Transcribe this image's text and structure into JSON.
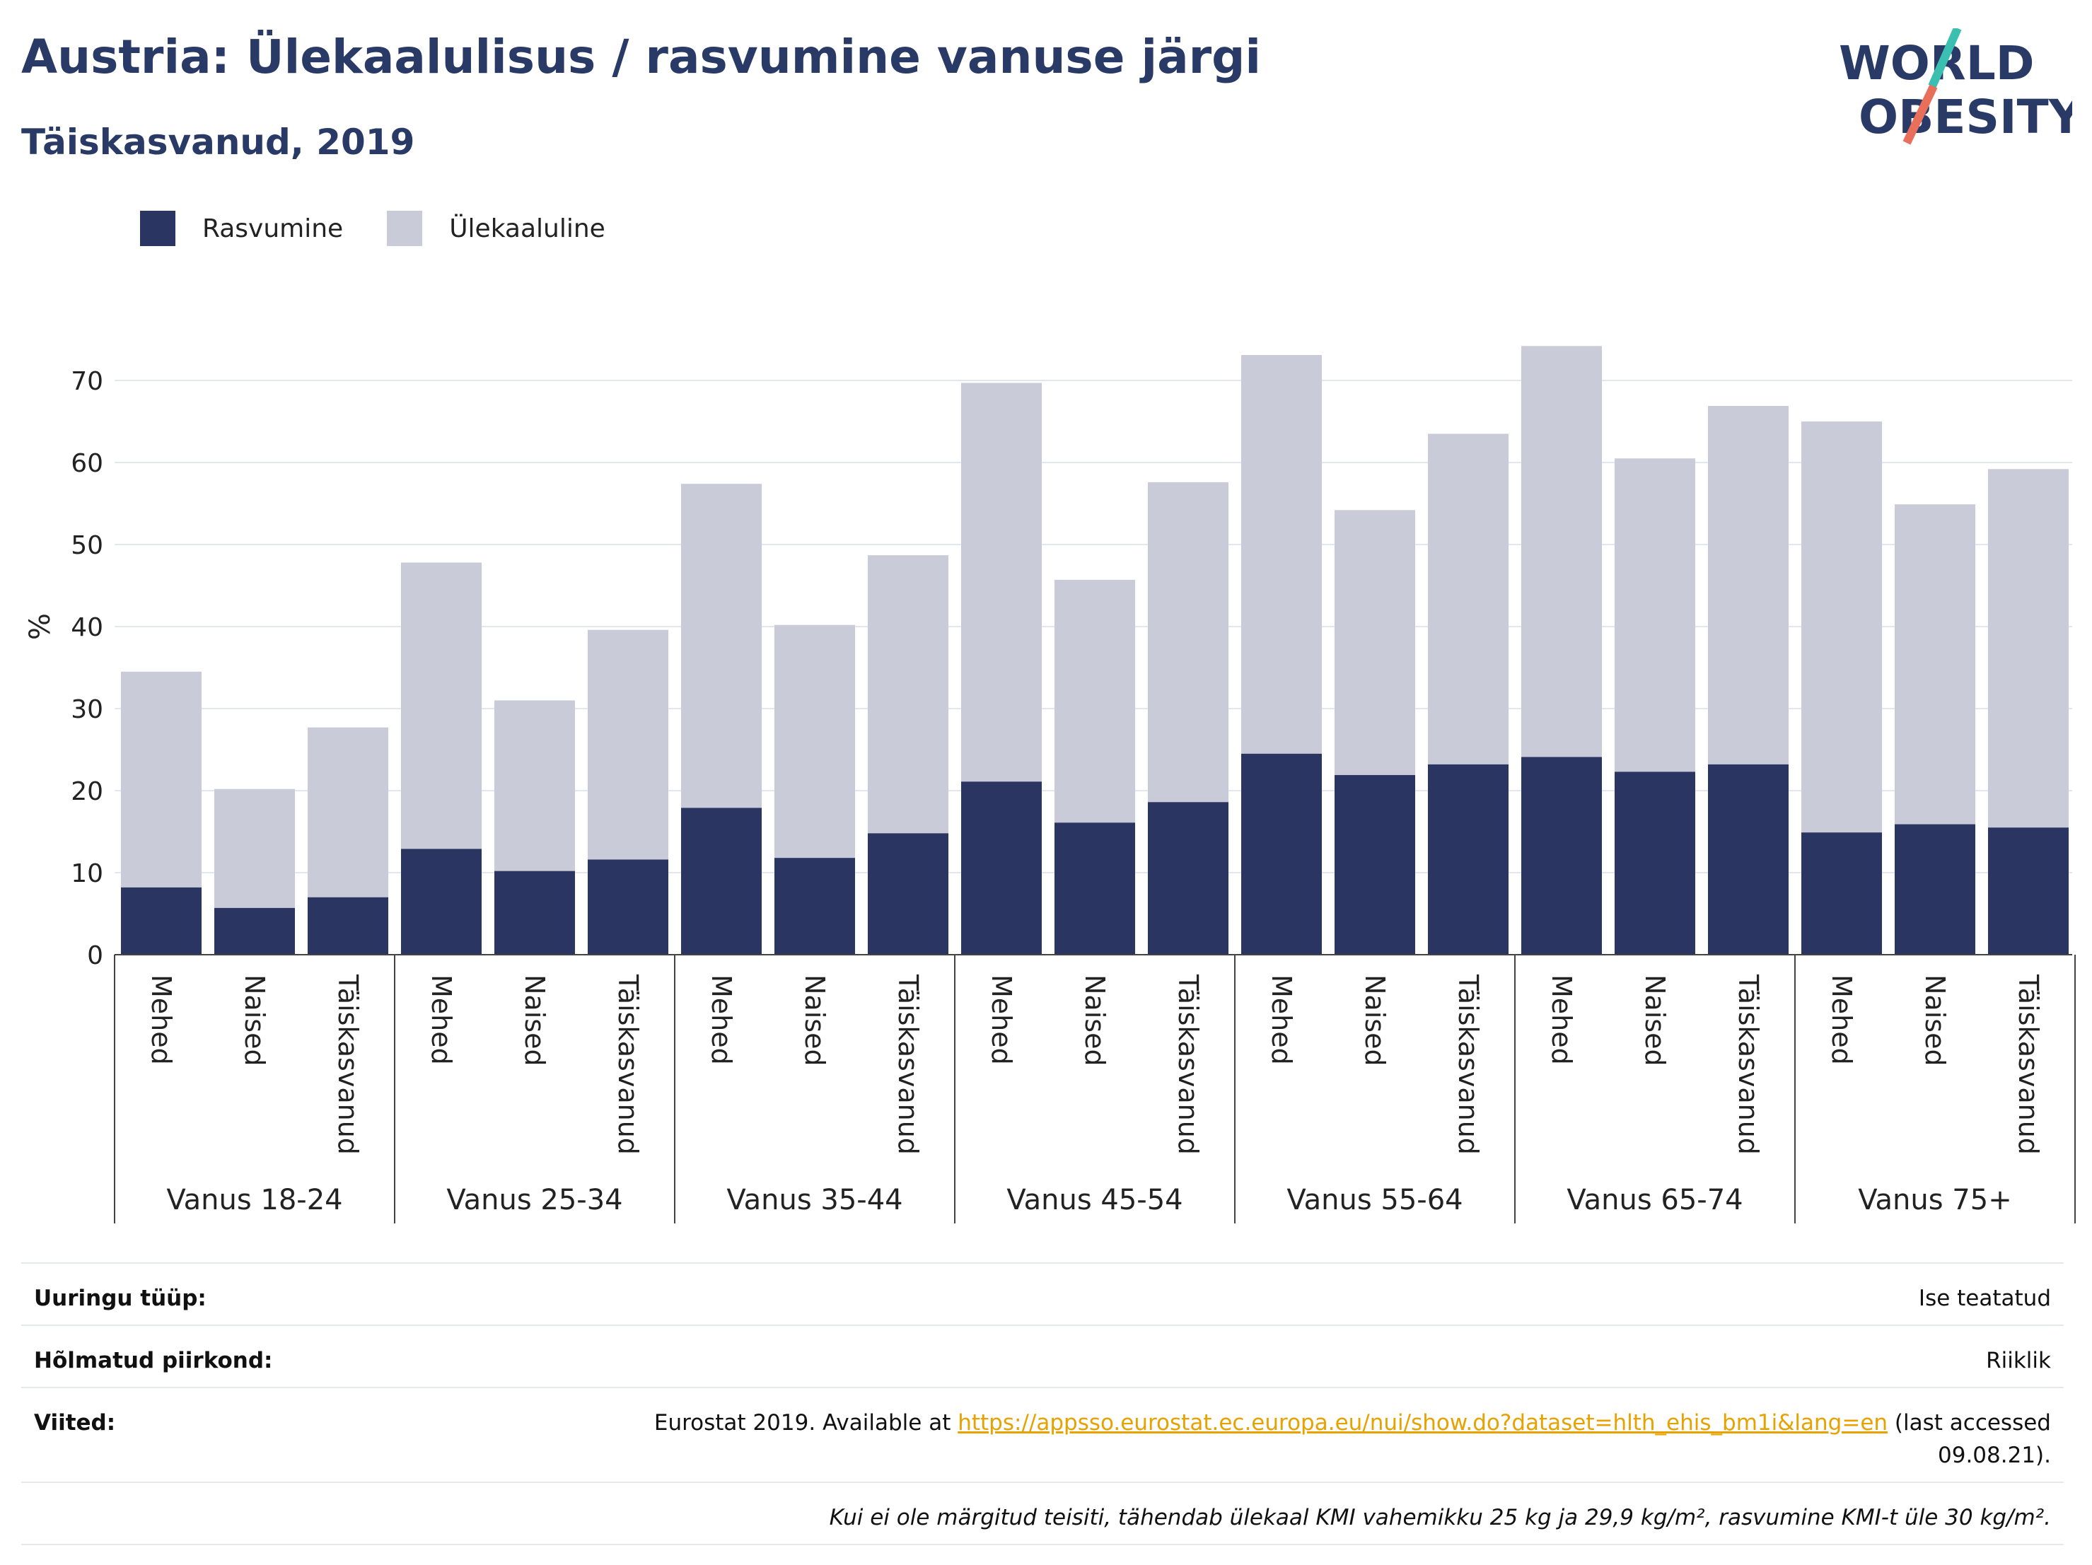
{
  "header": {
    "title": "Austria: Ülekaalulisus / rasvumine vanuse järgi",
    "subtitle": "Täiskasvanud, 2019"
  },
  "logo": {
    "line1": "WORLD",
    "line2": "OBESITY",
    "accent_teal": "#3bbfb0",
    "accent_coral": "#e8705a"
  },
  "legend": {
    "obesity_label": "Rasvumine",
    "overweight_label": "Ülekaaluline"
  },
  "colors": {
    "obesity": "#2b3562",
    "overweight": "#c9cbd8",
    "text_dark": "#2a3a66",
    "link": "#e8a200"
  },
  "chart_data": {
    "type": "bar",
    "stacked": true,
    "ylabel": "%",
    "ylim": [
      0,
      80
    ],
    "yticks": [
      0,
      10,
      20,
      30,
      40,
      50,
      60,
      70
    ],
    "grid": true,
    "legend_position": "top-left",
    "groups": [
      {
        "label": "Vanus 18-24",
        "categories": [
          "Mehed",
          "Naised",
          "Täiskasvanud"
        ]
      },
      {
        "label": "Vanus 25-34",
        "categories": [
          "Mehed",
          "Naised",
          "Täiskasvanud"
        ]
      },
      {
        "label": "Vanus 35-44",
        "categories": [
          "Mehed",
          "Naised",
          "Täiskasvanud"
        ]
      },
      {
        "label": "Vanus 45-54",
        "categories": [
          "Mehed",
          "Naised",
          "Täiskasvanud"
        ]
      },
      {
        "label": "Vanus 55-64",
        "categories": [
          "Mehed",
          "Naised",
          "Täiskasvanud"
        ]
      },
      {
        "label": "Vanus 65-74",
        "categories": [
          "Mehed",
          "Naised",
          "Täiskasvanud"
        ]
      },
      {
        "label": "Vanus 75+",
        "categories": [
          "Mehed",
          "Naised",
          "Täiskasvanud"
        ]
      }
    ],
    "series": [
      {
        "name": "Rasvumine",
        "values": [
          8.2,
          5.7,
          7.0,
          12.9,
          10.2,
          11.6,
          17.9,
          11.8,
          14.8,
          21.1,
          16.1,
          18.6,
          24.5,
          21.9,
          23.2,
          24.1,
          22.3,
          23.2,
          14.9,
          15.9,
          15.5
        ]
      },
      {
        "name": "Ülekaaluline",
        "values": [
          26.3,
          14.5,
          20.7,
          34.9,
          20.8,
          28.0,
          39.5,
          28.4,
          33.9,
          48.6,
          29.6,
          39.0,
          48.6,
          32.3,
          40.3,
          50.1,
          38.2,
          43.7,
          50.1,
          39.0,
          43.7
        ]
      }
    ]
  },
  "meta": {
    "survey_type_label": "Uuringu tüüp:",
    "survey_type_value": "Ise teatatud",
    "region_label": "Hõlmatud piirkond:",
    "region_value": "Riiklik",
    "references_label": "Viited:",
    "references_prefix": "Eurostat 2019. Available at ",
    "references_link": "https://appsso.eurostat.ec.europa.eu/nui/show.do?dataset=hlth_ehis_bm1i&lang=en",
    "references_suffix": " (last accessed 09.08.21).",
    "note": "Kui ei ole märgitud teisiti, tähendab ülekaal KMI vahemikku 25 kg ja 29,9 kg/m², rasvumine KMI-t üle 30 kg/m²."
  }
}
